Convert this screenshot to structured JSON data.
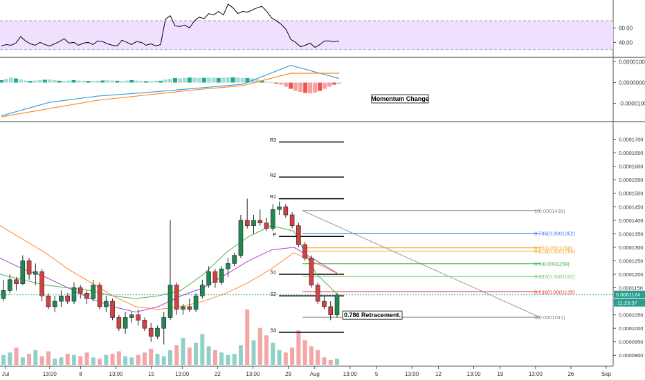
{
  "chart_data": [
    {
      "type": "line",
      "panel": "RSI",
      "yaxis": {
        "ticks": [
          60.0,
          40.0
        ],
        "tick_labels": [
          "60.00",
          "40.00"
        ],
        "ylim": [
          24,
          95
        ]
      },
      "band": {
        "upper": 70,
        "lower": 30,
        "fill": "#f0e0ff"
      },
      "series": [
        {
          "color": "#000000",
          "x": [
            0,
            1,
            2,
            3,
            4,
            5,
            6,
            7,
            8,
            9,
            10,
            11,
            12,
            13,
            14,
            15,
            16,
            17,
            18,
            19,
            20,
            21,
            22,
            23,
            24,
            25,
            26,
            27,
            28,
            29,
            30,
            31,
            32,
            33,
            34,
            35,
            36,
            37,
            38,
            39,
            40,
            41,
            42,
            43,
            44,
            45,
            46,
            47,
            48,
            49,
            50,
            51,
            52,
            53,
            54,
            55,
            56,
            57,
            58,
            59,
            60,
            61,
            62,
            63,
            64,
            65,
            66,
            67,
            68,
            69,
            70
          ],
          "values": [
            35,
            37,
            36,
            39,
            48,
            42,
            38,
            36,
            40,
            37,
            35,
            38,
            41,
            45,
            39,
            40,
            36,
            39,
            40,
            37,
            42,
            41,
            38,
            36,
            35,
            43,
            40,
            37,
            41,
            40,
            36,
            38,
            35,
            37,
            72,
            77,
            63,
            62,
            64,
            60,
            70,
            75,
            73,
            80,
            78,
            83,
            78,
            93,
            88,
            80,
            83,
            82,
            85,
            88,
            90,
            83,
            74,
            70,
            65,
            58,
            44,
            40,
            34,
            36,
            39,
            33,
            37,
            42,
            42,
            41,
            42
          ]
        }
      ]
    },
    {
      "type": "line",
      "panel": "MACD",
      "yaxis": {
        "ticks": [
          1e-05,
          0.0,
          -1e-05
        ],
        "tick_labels": [
          "0.0000100",
          "0.0000000",
          "-0.0000100"
        ],
        "ylim": [
          -1.68e-05,
          1.05e-05
        ]
      },
      "series": [
        {
          "color": "#3399dd",
          "x": [
            0,
            10,
            20,
            30,
            40,
            50,
            60,
            70
          ],
          "values": [
            -1.6e-05,
            -9.5e-06,
            -6.5e-06,
            -4.8e-06,
            -2.8e-06,
            -8e-07,
            8.3e-06,
            2e-06
          ]
        },
        {
          "color": "#ff8822",
          "x": [
            0,
            10,
            20,
            30,
            40,
            50,
            60,
            70
          ],
          "values": [
            -1.65e-05,
            -1.25e-05,
            -8.5e-06,
            -6e-06,
            -3.5e-06,
            -1.5e-06,
            4.5e-06,
            4.5e-06
          ]
        }
      ],
      "histogram": [
        1.2e-06,
        1.8e-06,
        2.4e-06,
        2e-06,
        1.5e-06,
        1e-06,
        8e-07,
        1e-06,
        1.2e-06,
        1.4e-06,
        1.5e-06,
        1.2e-06,
        9e-07,
        8e-07,
        1e-06,
        1.2e-06,
        1e-06,
        9e-07,
        8e-07,
        8e-07,
        9e-07,
        1e-06,
        1.1e-06,
        1e-06,
        9e-07,
        8e-07,
        1e-06,
        1.2e-06,
        1e-06,
        8e-07,
        7e-07,
        8e-07,
        9e-07,
        9e-07,
        1.5e-06,
        1.8e-06,
        2.2e-06,
        2e-06,
        2.2e-06,
        2.4e-06,
        2.4e-06,
        2.2e-06,
        2.3e-06,
        2.4e-06,
        2.3e-06,
        2.2e-06,
        2.4e-06,
        2.5e-06,
        2.5e-06,
        2.4e-06,
        2.3e-06,
        2.2e-06,
        2e-06,
        1.5e-06,
        1e-06,
        5e-07,
        2e-07,
        -5e-07,
        -1e-06,
        -2e-06,
        -3e-06,
        -4e-06,
        -4.5e-06,
        -5e-06,
        -5.2e-06,
        -4.8e-06,
        -4e-06,
        -3e-06,
        -2e-06,
        -1e-06,
        -5e-07
      ],
      "annotations": [
        "Momentum Change"
      ]
    },
    {
      "type": "candlestick",
      "panel": "Price",
      "x_tick_labels": [
        "Jul",
        "13:00",
        "8",
        "13:00",
        "15",
        "13:00",
        "22",
        "13:00",
        "29",
        "Aug",
        "13:00",
        "5",
        "13:00",
        "12",
        "13:00",
        "19",
        "13:00",
        "26",
        "Sep"
      ],
      "x_tick_index": [
        0,
        10,
        17,
        25,
        33,
        40,
        48,
        56,
        64,
        70,
        78,
        84,
        92,
        98,
        106,
        112,
        120,
        128,
        136
      ],
      "yaxis": {
        "ticks": [
          0.00017,
          0.000165,
          0.00016,
          0.000155,
          0.00015,
          0.000145,
          0.00014,
          0.000135,
          0.00013,
          0.000125,
          0.00012,
          0.000115,
          0.00011,
          0.000105,
          0.0001,
          9.5e-05,
          9e-05
        ],
        "tick_labels": [
          "0.0001700",
          "0.0001650",
          "0.0001600",
          "0.0001550",
          "0.0001500",
          "0.0001450",
          "0.0001400",
          "0.0001350",
          "0.0001300",
          "0.0001250",
          "0.0001200",
          "0.0001150",
          "0.0001100",
          "0.0001050",
          "0.0001000",
          "0.0000950",
          "0.0000900"
        ],
        "ylim": [
          8.75e-05,
          0.0001745
        ]
      },
      "current_price": {
        "label": "0.0001124",
        "value": 0.0001124,
        "countdown": "11:23:37",
        "color": "#2a9d8f"
      },
      "candles": [
        [
          0.000111,
          0.000118,
          0.00011,
          0.000114
        ],
        [
          0.000114,
          0.00012,
          0.000113,
          0.000118
        ],
        [
          0.000118,
          0.000119,
          0.000114,
          0.0001165
        ],
        [
          0.0001165,
          0.000127,
          0.000116,
          0.000125
        ],
        [
          0.000125,
          0.000126,
          0.000118,
          0.00012
        ],
        [
          0.00012,
          0.000124,
          0.000116,
          0.000121
        ],
        [
          0.000121,
          0.000122,
          0.00011,
          0.000112
        ],
        [
          0.000112,
          0.000113,
          0.000107,
          0.000108
        ],
        [
          0.000108,
          0.000112,
          0.000106,
          0.00011
        ],
        [
          0.00011,
          0.000114,
          0.000108,
          0.000112
        ],
        [
          0.000112,
          0.000113,
          0.000109,
          0.00011
        ],
        [
          0.00011,
          0.000117,
          0.000109,
          0.000115
        ],
        [
          0.000115,
          0.000116,
          0.000111,
          0.000113
        ],
        [
          0.000113,
          0.000114,
          0.000109,
          0.000111
        ],
        [
          0.000111,
          0.000118,
          0.00011,
          0.000116
        ],
        [
          0.000116,
          0.000117,
          0.000107,
          0.000108
        ],
        [
          0.000108,
          0.000112,
          0.000106,
          0.00011
        ],
        [
          0.00011,
          0.000111,
          0.000103,
          0.000104
        ],
        [
          0.000104,
          0.000105,
          9.9e-05,
          0.0001
        ],
        [
          0.0001,
          0.000106,
          9.8e-05,
          0.000104
        ],
        [
          0.000104,
          0.000106,
          0.000102,
          0.000105
        ],
        [
          0.000105,
          0.000107,
          0.000101,
          0.000103
        ],
        [
          0.000103,
          0.000104,
          9.9e-05,
          0.0001
        ],
        [
          0.0001,
          0.000102,
          9.5e-05,
          9.7e-05
        ],
        [
          9.7e-05,
          0.000101,
          9.6e-05,
          0.0001
        ],
        [
          0.0001,
          0.000106,
          9.4e-05,
          0.000104
        ],
        [
          0.000104,
          0.00014,
          0.000103,
          0.000116
        ],
        [
          0.000116,
          0.000117,
          0.000105,
          0.000107
        ],
        [
          0.000107,
          0.000109,
          0.000105,
          0.000108
        ],
        [
          0.000108,
          0.000111,
          0.000106,
          0.000107
        ],
        [
          0.000107,
          0.000113,
          0.000106,
          0.000112
        ],
        [
          0.000112,
          0.000118,
          0.000111,
          0.000116
        ],
        [
          0.000116,
          0.000123,
          0.000115,
          0.000121
        ],
        [
          0.000121,
          0.000122,
          0.000115,
          0.000117
        ],
        [
          0.000117,
          0.000123,
          0.000116,
          0.000122
        ],
        [
          0.000122,
          0.000126,
          0.000119,
          0.000124
        ],
        [
          0.000124,
          0.000128,
          0.000123,
          0.000127
        ],
        [
          0.000127,
          0.000142,
          0.000126,
          0.00014
        ],
        [
          0.00014,
          0.000148,
          0.000137,
          0.000138
        ],
        [
          0.000138,
          0.000142,
          0.000135,
          0.00014
        ],
        [
          0.00014,
          0.000144,
          0.000138,
          0.000139
        ],
        [
          0.000139,
          0.000141,
          0.000136,
          0.000137
        ],
        [
          0.000137,
          0.000146,
          0.000136,
          0.000144
        ],
        [
          0.000144,
          0.000147,
          0.000142,
          0.000145
        ],
        [
          0.000145,
          0.000146,
          0.000141,
          0.000142
        ],
        [
          0.000142,
          0.000143,
          0.000137,
          0.000138
        ],
        [
          0.000138,
          0.000139,
          0.00013,
          0.000131
        ],
        [
          0.000131,
          0.000132,
          0.000125,
          0.000126
        ],
        [
          0.000126,
          0.000127,
          0.000115,
          0.000116
        ],
        [
          0.000116,
          0.000117,
          0.000109,
          0.00011
        ],
        [
          0.00011,
          0.000112,
          0.000107,
          0.000108
        ],
        [
          0.000108,
          0.00011,
          0.000103,
          0.000105
        ],
        [
          0.000105,
          0.000113,
          0.000104,
          0.0001124
        ]
      ],
      "moving_averages": [
        {
          "color": "#4caf50",
          "values": [
            0.00012,
            0.000118,
            0.000116,
            0.000115,
            0.000114,
            0.000112,
            0.000111,
            0.000112,
            0.000114,
            0.00012,
            0.000128,
            0.000134,
            0.000138,
            0.000136,
            0.00012,
            0.000112
          ]
        },
        {
          "color": "#aa44cc",
          "values": [
            0.000126,
            0.000122,
            0.000119,
            0.000115,
            0.000111,
            0.000108,
            0.000106,
            0.000108,
            0.000112,
            0.000115,
            0.00012,
            0.000125,
            0.000129,
            0.00013,
            0.000125,
            0.00012
          ]
        },
        {
          "color": "#ff8833",
          "values": [
            0.000138,
            0.000133,
            0.000128,
            0.000122,
            0.000117,
            0.000112,
            0.000108,
            0.000107,
            0.000108,
            0.00011,
            0.000113,
            0.000117,
            0.000122,
            0.000128,
            0.000124,
            0.00012
          ]
        }
      ],
      "volume": [
        8,
        10,
        14,
        6,
        9,
        12,
        7,
        11,
        5,
        6,
        9,
        8,
        7,
        10,
        6,
        5,
        8,
        9,
        11,
        7,
        6,
        8,
        10,
        13,
        9,
        7,
        12,
        16,
        22,
        14,
        18,
        25,
        15,
        12,
        10,
        8,
        9,
        16,
        45,
        20,
        30,
        24,
        18,
        12,
        10,
        14,
        28,
        20,
        15,
        12,
        6,
        4,
        5
      ],
      "pivot_levels": [
        {
          "label": "R3",
          "value": 0.000169
        },
        {
          "label": "R2",
          "value": 0.000156
        },
        {
          "label": "R1",
          "value": 0.000148
        },
        {
          "label": "P",
          "value": 0.000134
        },
        {
          "label": "S1",
          "value": 0.00012
        },
        {
          "label": "S2",
          "value": 0.000112
        },
        {
          "label": "S3",
          "value": 9.85e-05
        }
      ],
      "fib_levels": [
        {
          "label": "1(0.0001436)",
          "value": 0.0001436,
          "color": "#888888"
        },
        {
          "label": "0.786(0.0001352)",
          "value": 0.0001352,
          "color": "#3377ee"
        },
        {
          "label": "0.65(0.0001298)",
          "value": 0.0001298,
          "color": "#f5a623"
        },
        {
          "label": "0.618(0.0001286)",
          "value": 0.0001286,
          "color": "#f5a623"
        },
        {
          "label": "0.5(0.0001239)",
          "value": 0.0001239,
          "color": "#33aa33"
        },
        {
          "label": "0.382(0.0001192)",
          "value": 0.0001192,
          "color": "#66cc66"
        },
        {
          "label": "0.236(0.0001135)",
          "value": 0.0001135,
          "color": "#e03030"
        },
        {
          "label": "0(0.0001041)",
          "value": 0.0001041,
          "color": "#888888"
        }
      ],
      "annotations": [
        "0.786 Retracement."
      ]
    }
  ]
}
